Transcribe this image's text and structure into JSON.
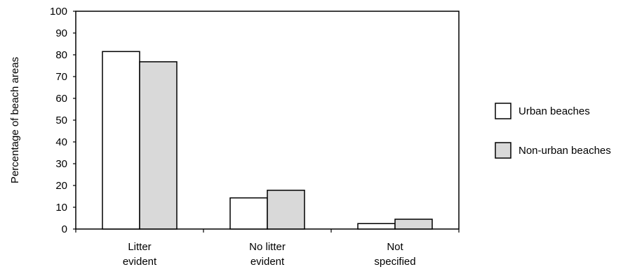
{
  "chart_data": {
    "type": "bar",
    "categories": [
      [
        "Litter",
        "evident"
      ],
      [
        "No litter",
        "evident"
      ],
      [
        "Not",
        "specified"
      ]
    ],
    "series": [
      {
        "name": "Urban beaches",
        "values": [
          81.5,
          14.3,
          2.5
        ],
        "color": "#ffffff"
      },
      {
        "name": "Non-urban beaches",
        "values": [
          76.8,
          17.8,
          4.5
        ],
        "color": "#d9d9d9"
      }
    ],
    "title": "",
    "xlabel": "",
    "ylabel": "Percentage of beach areas",
    "ylim": [
      0,
      100
    ],
    "yticks": [
      0,
      10,
      20,
      30,
      40,
      50,
      60,
      70,
      80,
      90,
      100
    ],
    "grid": false,
    "legend": "right"
  }
}
